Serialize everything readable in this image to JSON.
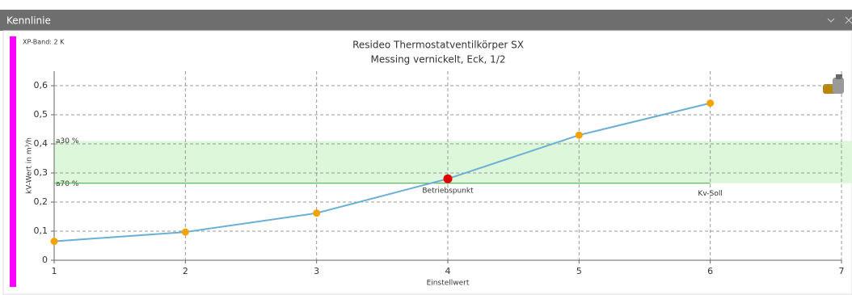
{
  "window": {
    "title": "Kennlinie"
  },
  "chart_data": {
    "type": "line",
    "title": "Resideo Thermostatventilkörper SX",
    "subtitle": "Messing vernickelt, Eck, 1/2",
    "note": "XP-Band: 2 K",
    "x_label": "Einstellwert",
    "y_label": "kV-Wert in m³/h",
    "x": [
      1,
      2,
      3,
      4,
      5,
      6
    ],
    "series": [
      {
        "color": "#6baed6",
        "point_color": "#f5a300",
        "values": [
          0.065,
          0.097,
          0.162,
          0.28,
          0.43,
          0.54
        ]
      }
    ],
    "xlim": [
      1,
      7
    ],
    "xticks": [
      1,
      2,
      3,
      4,
      5,
      6,
      7
    ],
    "ylim": [
      0,
      0.65
    ],
    "yticks": [
      0,
      {
        "value": 0.1,
        "label": "0,1"
      },
      {
        "value": 0.2,
        "label": "0,2"
      },
      {
        "value": 0.3,
        "label": "0,3"
      },
      {
        "value": 0.4,
        "label": "0,4"
      },
      {
        "value": 0.5,
        "label": "0,5"
      },
      {
        "value": 0.6,
        "label": "0,6"
      }
    ],
    "grid": true,
    "band": {
      "from": 0.265,
      "to": 0.41,
      "color": "#dcf7d9",
      "from_label": "a70 %",
      "to_label": "a30 %"
    },
    "target": {
      "value": 0.265,
      "x_end": 6,
      "label": "Kv-Soll",
      "color": "#5cb85c"
    },
    "operating_point": {
      "x": 4,
      "y": 0.28,
      "label": "Betriebspunkt",
      "color": "#e00000"
    }
  }
}
